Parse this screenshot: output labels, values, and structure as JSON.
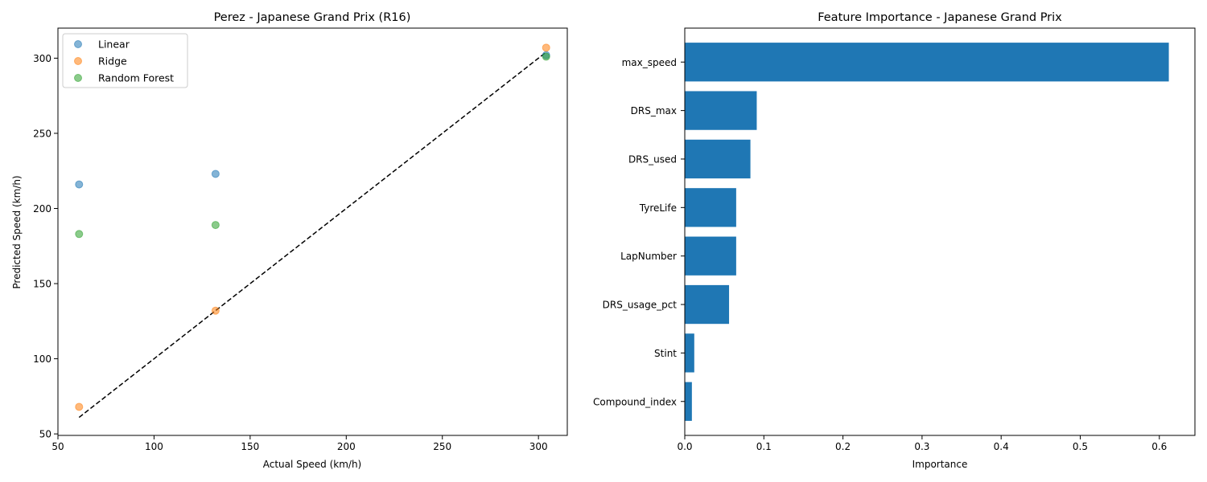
{
  "chart_data": [
    {
      "type": "scatter",
      "title": "Perez - Japanese Grand Prix (R16)",
      "xlabel": "Actual Speed (km/h)",
      "ylabel": "Predicted Speed (km/h)",
      "xlim": [
        50,
        315
      ],
      "ylim": [
        49,
        320
      ],
      "xticks": [
        50,
        100,
        150,
        200,
        250,
        300
      ],
      "yticks": [
        50,
        100,
        150,
        200,
        250,
        300
      ],
      "legend_position": "top-left",
      "reference_line": {
        "style": "dashed",
        "color": "#000000",
        "x": [
          61,
          304
        ],
        "y": [
          61,
          304
        ]
      },
      "series": [
        {
          "name": "Linear",
          "color": "#1f77b4",
          "points": [
            [
              61,
              216
            ],
            [
              132,
              223
            ],
            [
              304,
              302
            ]
          ]
        },
        {
          "name": "Ridge",
          "color": "#ff7f0e",
          "points": [
            [
              61,
              68
            ],
            [
              132,
              132
            ],
            [
              304,
              307
            ]
          ]
        },
        {
          "name": "Random Forest",
          "color": "#2ca02c",
          "points": [
            [
              61,
              183
            ],
            [
              132,
              189
            ],
            [
              304,
              301
            ]
          ]
        }
      ]
    },
    {
      "type": "bar",
      "orientation": "horizontal",
      "title": "Feature Importance - Japanese Grand Prix",
      "xlabel": "Importance",
      "ylabel": "",
      "xlim": [
        0,
        0.645
      ],
      "xticks": [
        0.0,
        0.1,
        0.2,
        0.3,
        0.4,
        0.5,
        0.6
      ],
      "xtick_labels": [
        "0.0",
        "0.1",
        "0.2",
        "0.3",
        "0.4",
        "0.5",
        "0.6"
      ],
      "color": "#1f77b4",
      "categories": [
        "max_speed",
        "DRS_max",
        "DRS_used",
        "TyreLife",
        "LapNumber",
        "DRS_usage_pct",
        "Stint",
        "Compound_index"
      ],
      "values": [
        0.612,
        0.091,
        0.083,
        0.065,
        0.065,
        0.056,
        0.012,
        0.009
      ]
    }
  ]
}
